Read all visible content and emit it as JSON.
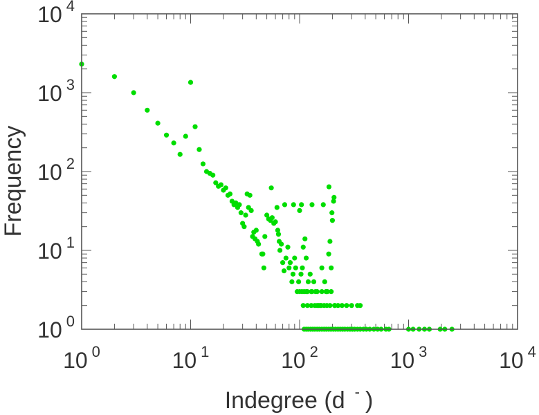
{
  "chart_data": {
    "type": "scatter",
    "title": "",
    "xlabel": "Indegree (d",
    "xlabel_superscript": "-",
    "xlabel_close": ")",
    "ylabel": "Frequency",
    "xscale": "log",
    "yscale": "log",
    "xlim": [
      1,
      10000
    ],
    "ylim": [
      1,
      10000
    ],
    "grid": false,
    "legend": "none",
    "x_ticks": [
      {
        "base": "10",
        "exp": "0"
      },
      {
        "base": "10",
        "exp": "1"
      },
      {
        "base": "10",
        "exp": "2"
      },
      {
        "base": "10",
        "exp": "3"
      },
      {
        "base": "10",
        "exp": "4"
      }
    ],
    "y_ticks": [
      {
        "base": "10",
        "exp": "0"
      },
      {
        "base": "10",
        "exp": "1"
      },
      {
        "base": "10",
        "exp": "2"
      },
      {
        "base": "10",
        "exp": "3"
      },
      {
        "base": "10",
        "exp": "4"
      }
    ],
    "marker_color": "#00dd00",
    "series": [
      {
        "name": "indegree",
        "points": [
          [
            1,
            2300
          ],
          [
            2,
            1600
          ],
          [
            3,
            1000
          ],
          [
            4,
            600
          ],
          [
            5,
            410
          ],
          [
            6,
            290
          ],
          [
            7,
            230
          ],
          [
            8,
            165
          ],
          [
            9,
            280
          ],
          [
            10,
            1350
          ],
          [
            11,
            370
          ],
          [
            12,
            190
          ],
          [
            13,
            125
          ],
          [
            14,
            100
          ],
          [
            15,
            95
          ],
          [
            16,
            90
          ],
          [
            17,
            72
          ],
          [
            18,
            65
          ],
          [
            19,
            68
          ],
          [
            20,
            58
          ],
          [
            21,
            62
          ],
          [
            22,
            50
          ],
          [
            23,
            52
          ],
          [
            24,
            42
          ],
          [
            25,
            38
          ],
          [
            26,
            40
          ],
          [
            27,
            35
          ],
          [
            28,
            38
          ],
          [
            29,
            30
          ],
          [
            30,
            22
          ],
          [
            31,
            20
          ],
          [
            32,
            28
          ],
          [
            33,
            52
          ],
          [
            34,
            35
          ],
          [
            35,
            50
          ],
          [
            36,
            32
          ],
          [
            37,
            15
          ],
          [
            38,
            17
          ],
          [
            39,
            14
          ],
          [
            40,
            18
          ],
          [
            41,
            13
          ],
          [
            42,
            12
          ],
          [
            45,
            9
          ],
          [
            46,
            9
          ],
          [
            47,
            6
          ],
          [
            48,
            15
          ],
          [
            50,
            28
          ],
          [
            52,
            25
          ],
          [
            54,
            24
          ],
          [
            55,
            62
          ],
          [
            56,
            26
          ],
          [
            58,
            22
          ],
          [
            60,
            23
          ],
          [
            62,
            35
          ],
          [
            63,
            18
          ],
          [
            64,
            16
          ],
          [
            65,
            13
          ],
          [
            66,
            10
          ],
          [
            68,
            12
          ],
          [
            70,
            7
          ],
          [
            72,
            5.5
          ],
          [
            73,
            38
          ],
          [
            75,
            8
          ],
          [
            78,
            11
          ],
          [
            80,
            6
          ],
          [
            82,
            7
          ],
          [
            85,
            4
          ],
          [
            87,
            5
          ],
          [
            88,
            38
          ],
          [
            90,
            8
          ],
          [
            92,
            6
          ],
          [
            95,
            3
          ],
          [
            98,
            4
          ],
          [
            100,
            32
          ],
          [
            103,
            5
          ],
          [
            104,
            38
          ],
          [
            106,
            6
          ],
          [
            108,
            11
          ],
          [
            110,
            3
          ],
          [
            112,
            14
          ],
          [
            115,
            8
          ],
          [
            118,
            3
          ],
          [
            120,
            4
          ],
          [
            125,
            5
          ],
          [
            128,
            3
          ],
          [
            130,
            38
          ],
          [
            135,
            4
          ],
          [
            140,
            3
          ],
          [
            145,
            2
          ],
          [
            150,
            2
          ],
          [
            155,
            2
          ],
          [
            160,
            6
          ],
          [
            165,
            38
          ],
          [
            170,
            4
          ],
          [
            175,
            3
          ],
          [
            180,
            3
          ],
          [
            185,
            9
          ],
          [
            186,
            64
          ],
          [
            190,
            13
          ],
          [
            195,
            6
          ],
          [
            198,
            30
          ],
          [
            200,
            24
          ],
          [
            205,
            42
          ],
          [
            207,
            47
          ],
          [
            210,
            2
          ],
          [
            100,
            3
          ],
          [
            105,
            3
          ],
          [
            115,
            3
          ],
          [
            130,
            3
          ],
          [
            145,
            3
          ],
          [
            160,
            3
          ],
          [
            175,
            3
          ],
          [
            195,
            3
          ],
          [
            108,
            2
          ],
          [
            118,
            2
          ],
          [
            128,
            2
          ],
          [
            138,
            2
          ],
          [
            158,
            2
          ],
          [
            168,
            2
          ],
          [
            178,
            2
          ],
          [
            190,
            2
          ],
          [
            210,
            2
          ],
          [
            225,
            2
          ],
          [
            245,
            2
          ],
          [
            270,
            2
          ],
          [
            300,
            2
          ],
          [
            340,
            2
          ],
          [
            360,
            2
          ],
          [
            110,
            1
          ],
          [
            115,
            1
          ],
          [
            120,
            1
          ],
          [
            126,
            1
          ],
          [
            132,
            1
          ],
          [
            138,
            1
          ],
          [
            145,
            1
          ],
          [
            152,
            1
          ],
          [
            160,
            1
          ],
          [
            168,
            1
          ],
          [
            176,
            1
          ],
          [
            185,
            1
          ],
          [
            194,
            1
          ],
          [
            204,
            1
          ],
          [
            214,
            1
          ],
          [
            225,
            1
          ],
          [
            236,
            1
          ],
          [
            248,
            1
          ],
          [
            260,
            1
          ],
          [
            275,
            1
          ],
          [
            290,
            1
          ],
          [
            305,
            1
          ],
          [
            320,
            1
          ],
          [
            340,
            1
          ],
          [
            360,
            1
          ],
          [
            385,
            1
          ],
          [
            410,
            1
          ],
          [
            440,
            1
          ],
          [
            480,
            1
          ],
          [
            520,
            1
          ],
          [
            560,
            1
          ],
          [
            620,
            1
          ],
          [
            660,
            1
          ],
          [
            1000,
            1
          ],
          [
            1100,
            1
          ],
          [
            1250,
            1
          ],
          [
            1400,
            1
          ],
          [
            1550,
            1
          ],
          [
            1950,
            1
          ],
          [
            2150,
            1
          ],
          [
            2500,
            1
          ]
        ]
      }
    ]
  }
}
